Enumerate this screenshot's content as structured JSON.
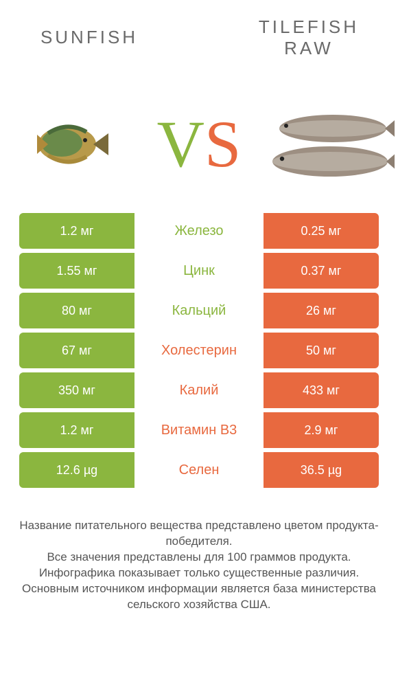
{
  "header": {
    "left_title": "SUNFISH",
    "right_title_line1": "TILEFISH",
    "right_title_line2": "RAW"
  },
  "vs": {
    "v": "V",
    "s": "S"
  },
  "colors": {
    "left": "#8bb63f",
    "right": "#e8693f",
    "text": "#555555",
    "background": "#ffffff"
  },
  "images": {
    "left_alt": "sunfish",
    "right_alt": "tilefish"
  },
  "rows": [
    {
      "label": "Железо",
      "left": "1.2 мг",
      "right": "0.25 мг",
      "winner": "left"
    },
    {
      "label": "Цинк",
      "left": "1.55 мг",
      "right": "0.37 мг",
      "winner": "left"
    },
    {
      "label": "Кальций",
      "left": "80 мг",
      "right": "26 мг",
      "winner": "left"
    },
    {
      "label": "Холестерин",
      "left": "67 мг",
      "right": "50 мг",
      "winner": "right"
    },
    {
      "label": "Калий",
      "left": "350 мг",
      "right": "433 мг",
      "winner": "right"
    },
    {
      "label": "Витамин B3",
      "left": "1.2 мг",
      "right": "2.9 мг",
      "winner": "right"
    },
    {
      "label": "Селен",
      "left": "12.6 µg",
      "right": "36.5 µg",
      "winner": "right"
    }
  ],
  "footer": {
    "line1": "Название питательного вещества представлено цветом продукта-победителя.",
    "line2": "Все значения представлены для 100 граммов продукта.",
    "line3": "Инфографика показывает только существенные различия.",
    "line4": "Основным источником информации является база министерства сельского хозяйства США."
  }
}
